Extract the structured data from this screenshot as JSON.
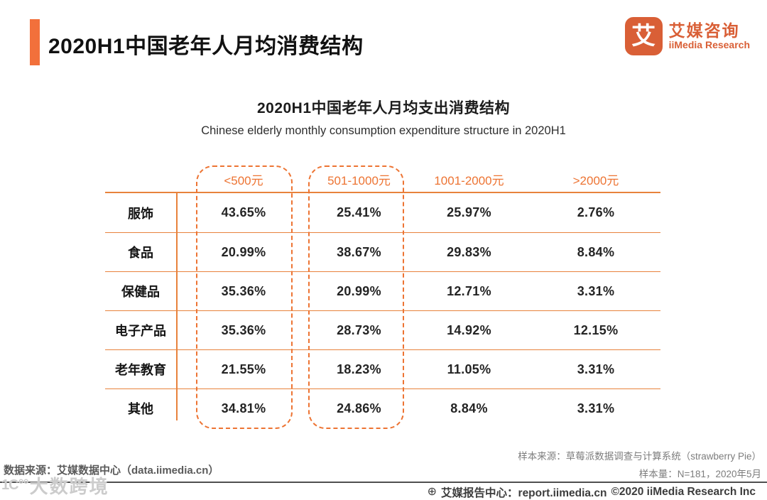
{
  "header": {
    "title": "2020H1中国老年人月均消费结构"
  },
  "logo": {
    "glyph": "艾",
    "name_cn": "艾媒咨询",
    "name_en": "iiMedia Research"
  },
  "chart": {
    "title": "2020H1中国老年人月均支出消费结构",
    "subtitle": "Chinese elderly monthly consumption expenditure structure in 2020H1"
  },
  "chart_data": {
    "type": "table",
    "columns": [
      "<500元",
      "501-1000元",
      "1001-2000元",
      ">2000元"
    ],
    "rows": [
      {
        "label": "服饰",
        "values": [
          "43.65%",
          "25.41%",
          "25.97%",
          "2.76%"
        ]
      },
      {
        "label": "食品",
        "values": [
          "20.99%",
          "38.67%",
          "29.83%",
          "8.84%"
        ]
      },
      {
        "label": "保健品",
        "values": [
          "35.36%",
          "20.99%",
          "12.71%",
          "3.31%"
        ]
      },
      {
        "label": "电子产品",
        "values": [
          "35.36%",
          "28.73%",
          "14.92%",
          "12.15%"
        ]
      },
      {
        "label": "老年教育",
        "values": [
          "21.55%",
          "18.23%",
          "11.05%",
          "3.31%"
        ]
      },
      {
        "label": "其他",
        "values": [
          "34.81%",
          "24.86%",
          "8.84%",
          "3.31%"
        ]
      }
    ],
    "highlighted_columns": [
      "<500元",
      "501-1000元"
    ],
    "layout": {
      "grid": "off",
      "highlight_style": "dashed-rounded-box"
    }
  },
  "footnotes": {
    "data_source": "数据来源：艾媒数据中心（data.iimedia.cn）",
    "sample_source": "样本来源：草莓派数据调查与计算系统（strawberry Pie）",
    "sample_size": "样本量：N=181，2020年5月"
  },
  "footer": {
    "globe_icon": "⊕",
    "report_center": "艾媒报告中心：report.iimedia.cn",
    "copyright": "©2020  iiMedia Research Inc"
  },
  "watermark": {
    "prefix": "1C°°",
    "text": "大数跨境"
  },
  "colors": {
    "accent": "#ED7433",
    "table_line": "#E8823C",
    "logo_orange": "#D95F36"
  }
}
